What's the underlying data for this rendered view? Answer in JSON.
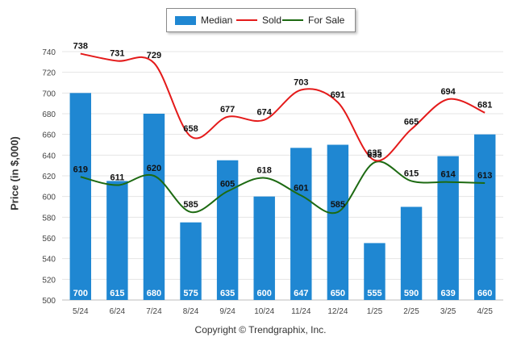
{
  "legend": {
    "median_label": "Median",
    "sold_label": "Sold",
    "for_sale_label": "For Sale"
  },
  "copyright": "Copyright © Trendgraphix, Inc.",
  "colors": {
    "median": "#1f87d2",
    "sold": "#e41a1a",
    "for_sale": "#1d6a12",
    "grid": "#e4e4e4"
  },
  "chart_data": {
    "type": "bar",
    "ylabel": "Price (in $,000)",
    "ylim": [
      500,
      740
    ],
    "ytick_step": 20,
    "grid": true,
    "legend_position": "top-center",
    "categories": [
      "5/24",
      "6/24",
      "7/24",
      "8/24",
      "9/24",
      "10/24",
      "11/24",
      "12/24",
      "1/25",
      "2/25",
      "3/25",
      "4/25"
    ],
    "series": [
      {
        "name": "Median",
        "type": "bar",
        "values": [
          700,
          615,
          680,
          575,
          635,
          600,
          647,
          650,
          555,
          590,
          639,
          660
        ]
      },
      {
        "name": "Sold",
        "type": "line",
        "values": [
          738,
          731,
          729,
          658,
          677,
          674,
          703,
          691,
          635,
          665,
          694,
          681
        ]
      },
      {
        "name": "For Sale",
        "type": "line",
        "values": [
          619,
          611,
          620,
          585,
          605,
          618,
          601,
          585,
          633,
          615,
          614,
          613
        ]
      }
    ]
  }
}
